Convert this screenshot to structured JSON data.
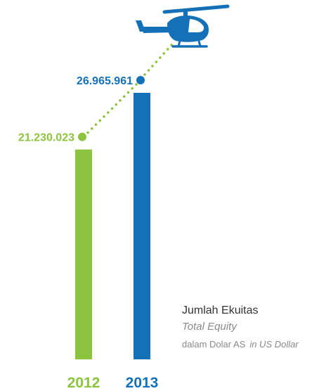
{
  "colors": {
    "series_2012": "#8cc43f",
    "series_2013": "#1471b8",
    "text_dark": "#333333",
    "text_muted": "#8a8a8a"
  },
  "chart_data": {
    "type": "bar",
    "categories": [
      "2012",
      "2013"
    ],
    "values": [
      21230023,
      26965961
    ],
    "value_labels": [
      "21.230.023",
      "26.965.961"
    ],
    "ylim": [
      0,
      27000000
    ],
    "grid": false,
    "trend_line": "dotted",
    "decoration": "helicopter-icon",
    "legend": {
      "title": "Jumlah Ekuitas",
      "subtitle": "Total Equity",
      "unit": "dalam Dolar AS",
      "unit_en": "in US Dollar"
    }
  }
}
